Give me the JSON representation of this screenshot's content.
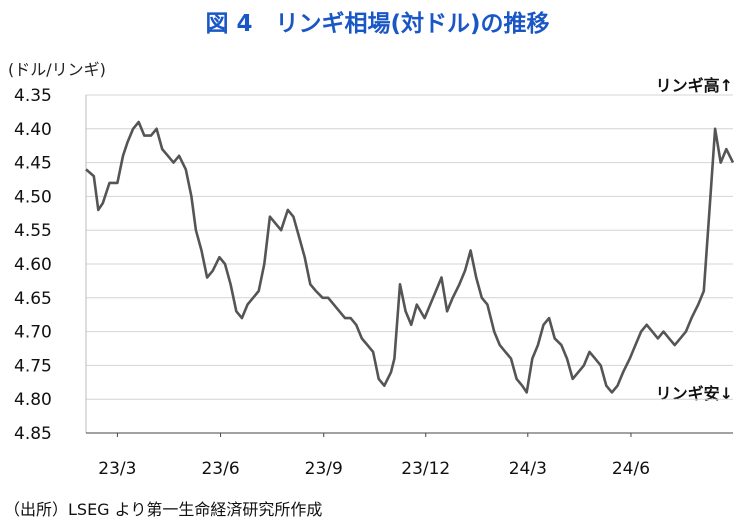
{
  "title": "図 4　リンギ相場(対ドル)の推移",
  "source": "（出所）LSEG より第一生命経済研究所作成",
  "chart_data": {
    "type": "line",
    "title": "図 4　リンギ相場(対ドル)の推移",
    "ylabel": "(ドル/リンギ)",
    "xlabel": "",
    "y_inverted": true,
    "ylim": [
      4.35,
      4.85
    ],
    "yticks": [
      "4.35",
      "4.40",
      "4.45",
      "4.50",
      "4.55",
      "4.60",
      "4.65",
      "4.70",
      "4.75",
      "4.80",
      "4.85"
    ],
    "xticks": [
      "23/3",
      "23/6",
      "23/9",
      "23/12",
      "24/3",
      "24/6"
    ],
    "xlim": [
      "2023-02-01",
      "2024-08-31"
    ],
    "grid": true,
    "annotations": {
      "high": "リンギ高↑",
      "low": "リンギ安↓"
    },
    "color": "#555555",
    "series": [
      {
        "x": [
          "2023-02-01",
          "2023-02-08",
          "2023-02-12",
          "2023-02-16",
          "2023-02-22",
          "2023-03-01",
          "2023-03-06",
          "2023-03-10",
          "2023-03-15",
          "2023-03-20",
          "2023-03-25",
          "2023-03-31",
          "2023-04-05",
          "2023-04-10",
          "2023-04-15",
          "2023-04-20",
          "2023-04-25",
          "2023-05-01",
          "2023-05-06",
          "2023-05-10",
          "2023-05-15",
          "2023-05-20",
          "2023-05-25",
          "2023-05-31",
          "2023-06-05",
          "2023-06-10",
          "2023-06-15",
          "2023-06-20",
          "2023-06-25",
          "2023-06-30",
          "2023-07-05",
          "2023-07-10",
          "2023-07-15",
          "2023-07-20",
          "2023-07-25",
          "2023-07-31",
          "2023-08-05",
          "2023-08-10",
          "2023-08-15",
          "2023-08-20",
          "2023-08-25",
          "2023-08-31",
          "2023-09-05",
          "2023-09-10",
          "2023-09-15",
          "2023-09-20",
          "2023-09-25",
          "2023-09-30",
          "2023-10-05",
          "2023-10-10",
          "2023-10-15",
          "2023-10-20",
          "2023-10-25",
          "2023-10-31",
          "2023-11-03",
          "2023-11-08",
          "2023-11-13",
          "2023-11-18",
          "2023-11-23",
          "2023-11-30",
          "2023-12-05",
          "2023-12-10",
          "2023-12-15",
          "2023-12-20",
          "2023-12-25",
          "2023-12-31",
          "2024-01-05",
          "2024-01-10",
          "2024-01-15",
          "2024-01-20",
          "2024-01-25",
          "2024-01-31",
          "2024-02-05",
          "2024-02-10",
          "2024-02-15",
          "2024-02-20",
          "2024-02-25",
          "2024-02-29",
          "2024-03-05",
          "2024-03-10",
          "2024-03-15",
          "2024-03-20",
          "2024-03-25",
          "2024-03-31",
          "2024-04-05",
          "2024-04-10",
          "2024-04-15",
          "2024-04-20",
          "2024-04-25",
          "2024-04-30",
          "2024-05-05",
          "2024-05-10",
          "2024-05-15",
          "2024-05-20",
          "2024-05-25",
          "2024-05-31",
          "2024-06-05",
          "2024-06-10",
          "2024-06-15",
          "2024-06-20",
          "2024-06-25",
          "2024-06-30",
          "2024-07-05",
          "2024-07-10",
          "2024-07-15",
          "2024-07-20",
          "2024-07-25",
          "2024-07-31",
          "2024-08-05",
          "2024-08-10",
          "2024-08-15",
          "2024-08-20",
          "2024-08-25",
          "2024-08-31"
        ],
        "y": [
          4.46,
          4.47,
          4.52,
          4.51,
          4.48,
          4.48,
          4.44,
          4.42,
          4.4,
          4.39,
          4.41,
          4.41,
          4.4,
          4.43,
          4.44,
          4.45,
          4.44,
          4.46,
          4.5,
          4.55,
          4.58,
          4.62,
          4.61,
          4.59,
          4.6,
          4.63,
          4.67,
          4.68,
          4.66,
          4.65,
          4.64,
          4.6,
          4.53,
          4.54,
          4.55,
          4.52,
          4.53,
          4.56,
          4.59,
          4.63,
          4.64,
          4.65,
          4.65,
          4.66,
          4.67,
          4.68,
          4.68,
          4.69,
          4.71,
          4.72,
          4.73,
          4.77,
          4.78,
          4.76,
          4.74,
          4.63,
          4.67,
          4.69,
          4.66,
          4.68,
          4.66,
          4.64,
          4.62,
          4.67,
          4.65,
          4.63,
          4.61,
          4.58,
          4.62,
          4.65,
          4.66,
          4.7,
          4.72,
          4.73,
          4.74,
          4.77,
          4.78,
          4.79,
          4.74,
          4.72,
          4.69,
          4.68,
          4.71,
          4.72,
          4.74,
          4.77,
          4.76,
          4.75,
          4.73,
          4.74,
          4.75,
          4.78,
          4.79,
          4.78,
          4.76,
          4.74,
          4.72,
          4.7,
          4.69,
          4.7,
          4.71,
          4.7,
          4.71,
          4.72,
          4.71,
          4.7,
          4.68,
          4.66,
          4.64,
          4.52,
          4.4,
          4.45,
          4.43,
          4.45
        ]
      }
    ]
  }
}
